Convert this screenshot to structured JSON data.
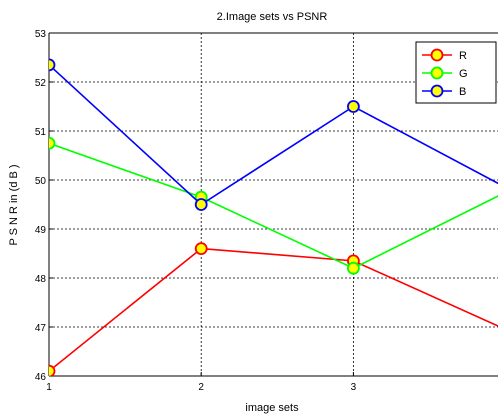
{
  "chart_data": {
    "type": "line",
    "title": "2.Image sets vs PSNR",
    "xlabel": "image sets",
    "ylabel": "P S N R  in (d B )",
    "x": [
      1,
      2,
      3,
      4
    ],
    "xlim": [
      1,
      4
    ],
    "ylim": [
      46,
      53
    ],
    "x_ticks": [
      "1",
      "2",
      "3"
    ],
    "y_ticks": [
      "46",
      "47",
      "48",
      "49",
      "50",
      "51",
      "52",
      "53"
    ],
    "grid": true,
    "legend_position": "top-right",
    "series": [
      {
        "name": "R",
        "color": "#ff0000",
        "values": [
          46.1,
          48.6,
          48.35,
          46.95
        ]
      },
      {
        "name": "G",
        "color": "#00ff00",
        "values": [
          50.75,
          49.65,
          48.2,
          49.75
        ]
      },
      {
        "name": "B",
        "color": "#0000ff",
        "values": [
          52.35,
          49.5,
          51.5,
          49.85
        ]
      }
    ],
    "marker_fill": "#ffff00"
  }
}
